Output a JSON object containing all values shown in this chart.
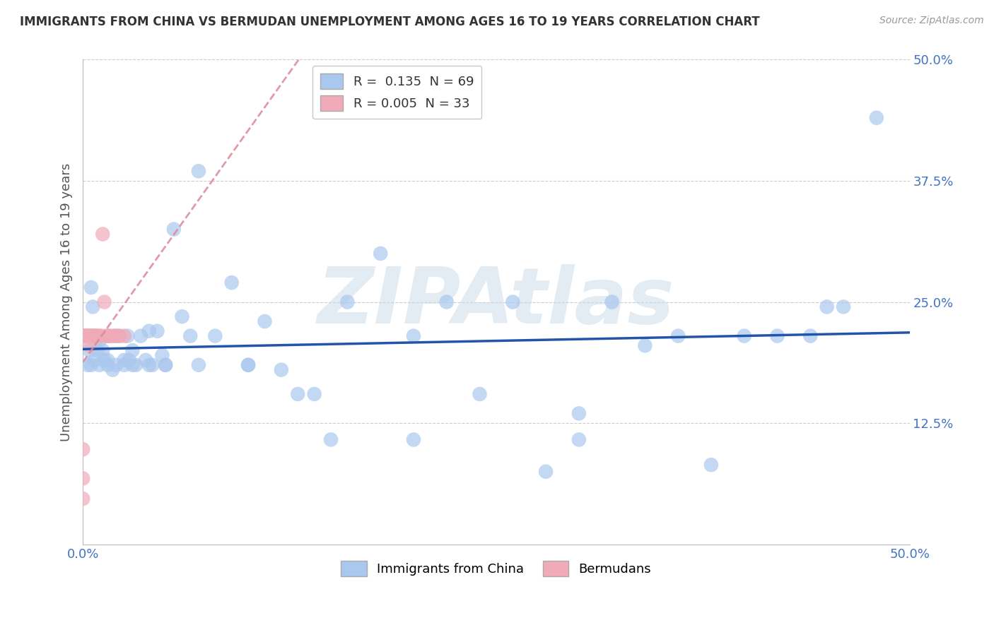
{
  "title": "IMMIGRANTS FROM CHINA VS BERMUDAN UNEMPLOYMENT AMONG AGES 16 TO 19 YEARS CORRELATION CHART",
  "source": "Source: ZipAtlas.com",
  "ylabel": "Unemployment Among Ages 16 to 19 years",
  "xlim": [
    0,
    0.5
  ],
  "ylim": [
    0,
    0.5
  ],
  "yticks": [
    0.125,
    0.25,
    0.375,
    0.5
  ],
  "ytick_labels": [
    "12.5%",
    "25.0%",
    "37.5%",
    "50.0%"
  ],
  "xticks": [
    0.0,
    0.5
  ],
  "xtick_labels": [
    "0.0%",
    "50.0%"
  ],
  "legend_label_1": "R =  0.135  N = 69",
  "legend_label_2": "R = 0.005  N = 33",
  "legend_bottom_1": "Immigrants from China",
  "legend_bottom_2": "Bermudans",
  "blue_color": "#aac8ed",
  "pink_color": "#f0aab8",
  "trend_blue": "#2255aa",
  "trend_pink": "#dd8899",
  "watermark": "ZIPAtlas",
  "background": "#ffffff",
  "grid_color": "#cccccc",
  "blue_x": [
    0.003,
    0.004,
    0.005,
    0.006,
    0.007,
    0.008,
    0.009,
    0.01,
    0.012,
    0.013,
    0.015,
    0.016,
    0.018,
    0.02,
    0.022,
    0.025,
    0.027,
    0.028,
    0.03,
    0.032,
    0.035,
    0.038,
    0.04,
    0.042,
    0.045,
    0.048,
    0.05,
    0.055,
    0.06,
    0.065,
    0.07,
    0.08,
    0.09,
    0.1,
    0.11,
    0.12,
    0.13,
    0.14,
    0.16,
    0.18,
    0.2,
    0.22,
    0.24,
    0.26,
    0.28,
    0.3,
    0.32,
    0.34,
    0.36,
    0.38,
    0.4,
    0.42,
    0.44,
    0.46,
    0.48,
    0.005,
    0.01,
    0.015,
    0.02,
    0.025,
    0.03,
    0.04,
    0.05,
    0.07,
    0.1,
    0.15,
    0.2,
    0.3,
    0.45
  ],
  "blue_y": [
    0.185,
    0.2,
    0.265,
    0.245,
    0.19,
    0.215,
    0.2,
    0.21,
    0.2,
    0.19,
    0.19,
    0.215,
    0.18,
    0.215,
    0.215,
    0.19,
    0.215,
    0.19,
    0.2,
    0.185,
    0.215,
    0.19,
    0.22,
    0.185,
    0.22,
    0.195,
    0.185,
    0.325,
    0.235,
    0.215,
    0.385,
    0.215,
    0.27,
    0.185,
    0.23,
    0.18,
    0.155,
    0.155,
    0.25,
    0.3,
    0.215,
    0.25,
    0.155,
    0.25,
    0.075,
    0.135,
    0.25,
    0.205,
    0.215,
    0.082,
    0.215,
    0.215,
    0.215,
    0.245,
    0.44,
    0.185,
    0.185,
    0.185,
    0.185,
    0.185,
    0.185,
    0.185,
    0.185,
    0.185,
    0.185,
    0.108,
    0.108,
    0.108,
    0.245
  ],
  "pink_x": [
    0.0,
    0.0,
    0.0,
    0.0,
    0.0,
    0.001,
    0.001,
    0.002,
    0.002,
    0.003,
    0.003,
    0.004,
    0.004,
    0.005,
    0.005,
    0.006,
    0.006,
    0.007,
    0.008,
    0.009,
    0.01,
    0.011,
    0.012,
    0.013,
    0.014,
    0.015,
    0.017,
    0.019,
    0.02,
    0.022,
    0.025,
    0.001,
    0.002
  ],
  "pink_y": [
    0.047,
    0.068,
    0.098,
    0.215,
    0.215,
    0.215,
    0.215,
    0.215,
    0.215,
    0.215,
    0.215,
    0.205,
    0.215,
    0.215,
    0.215,
    0.215,
    0.215,
    0.215,
    0.215,
    0.215,
    0.215,
    0.215,
    0.32,
    0.25,
    0.215,
    0.215,
    0.215,
    0.215,
    0.215,
    0.215,
    0.215,
    0.215,
    0.215
  ]
}
